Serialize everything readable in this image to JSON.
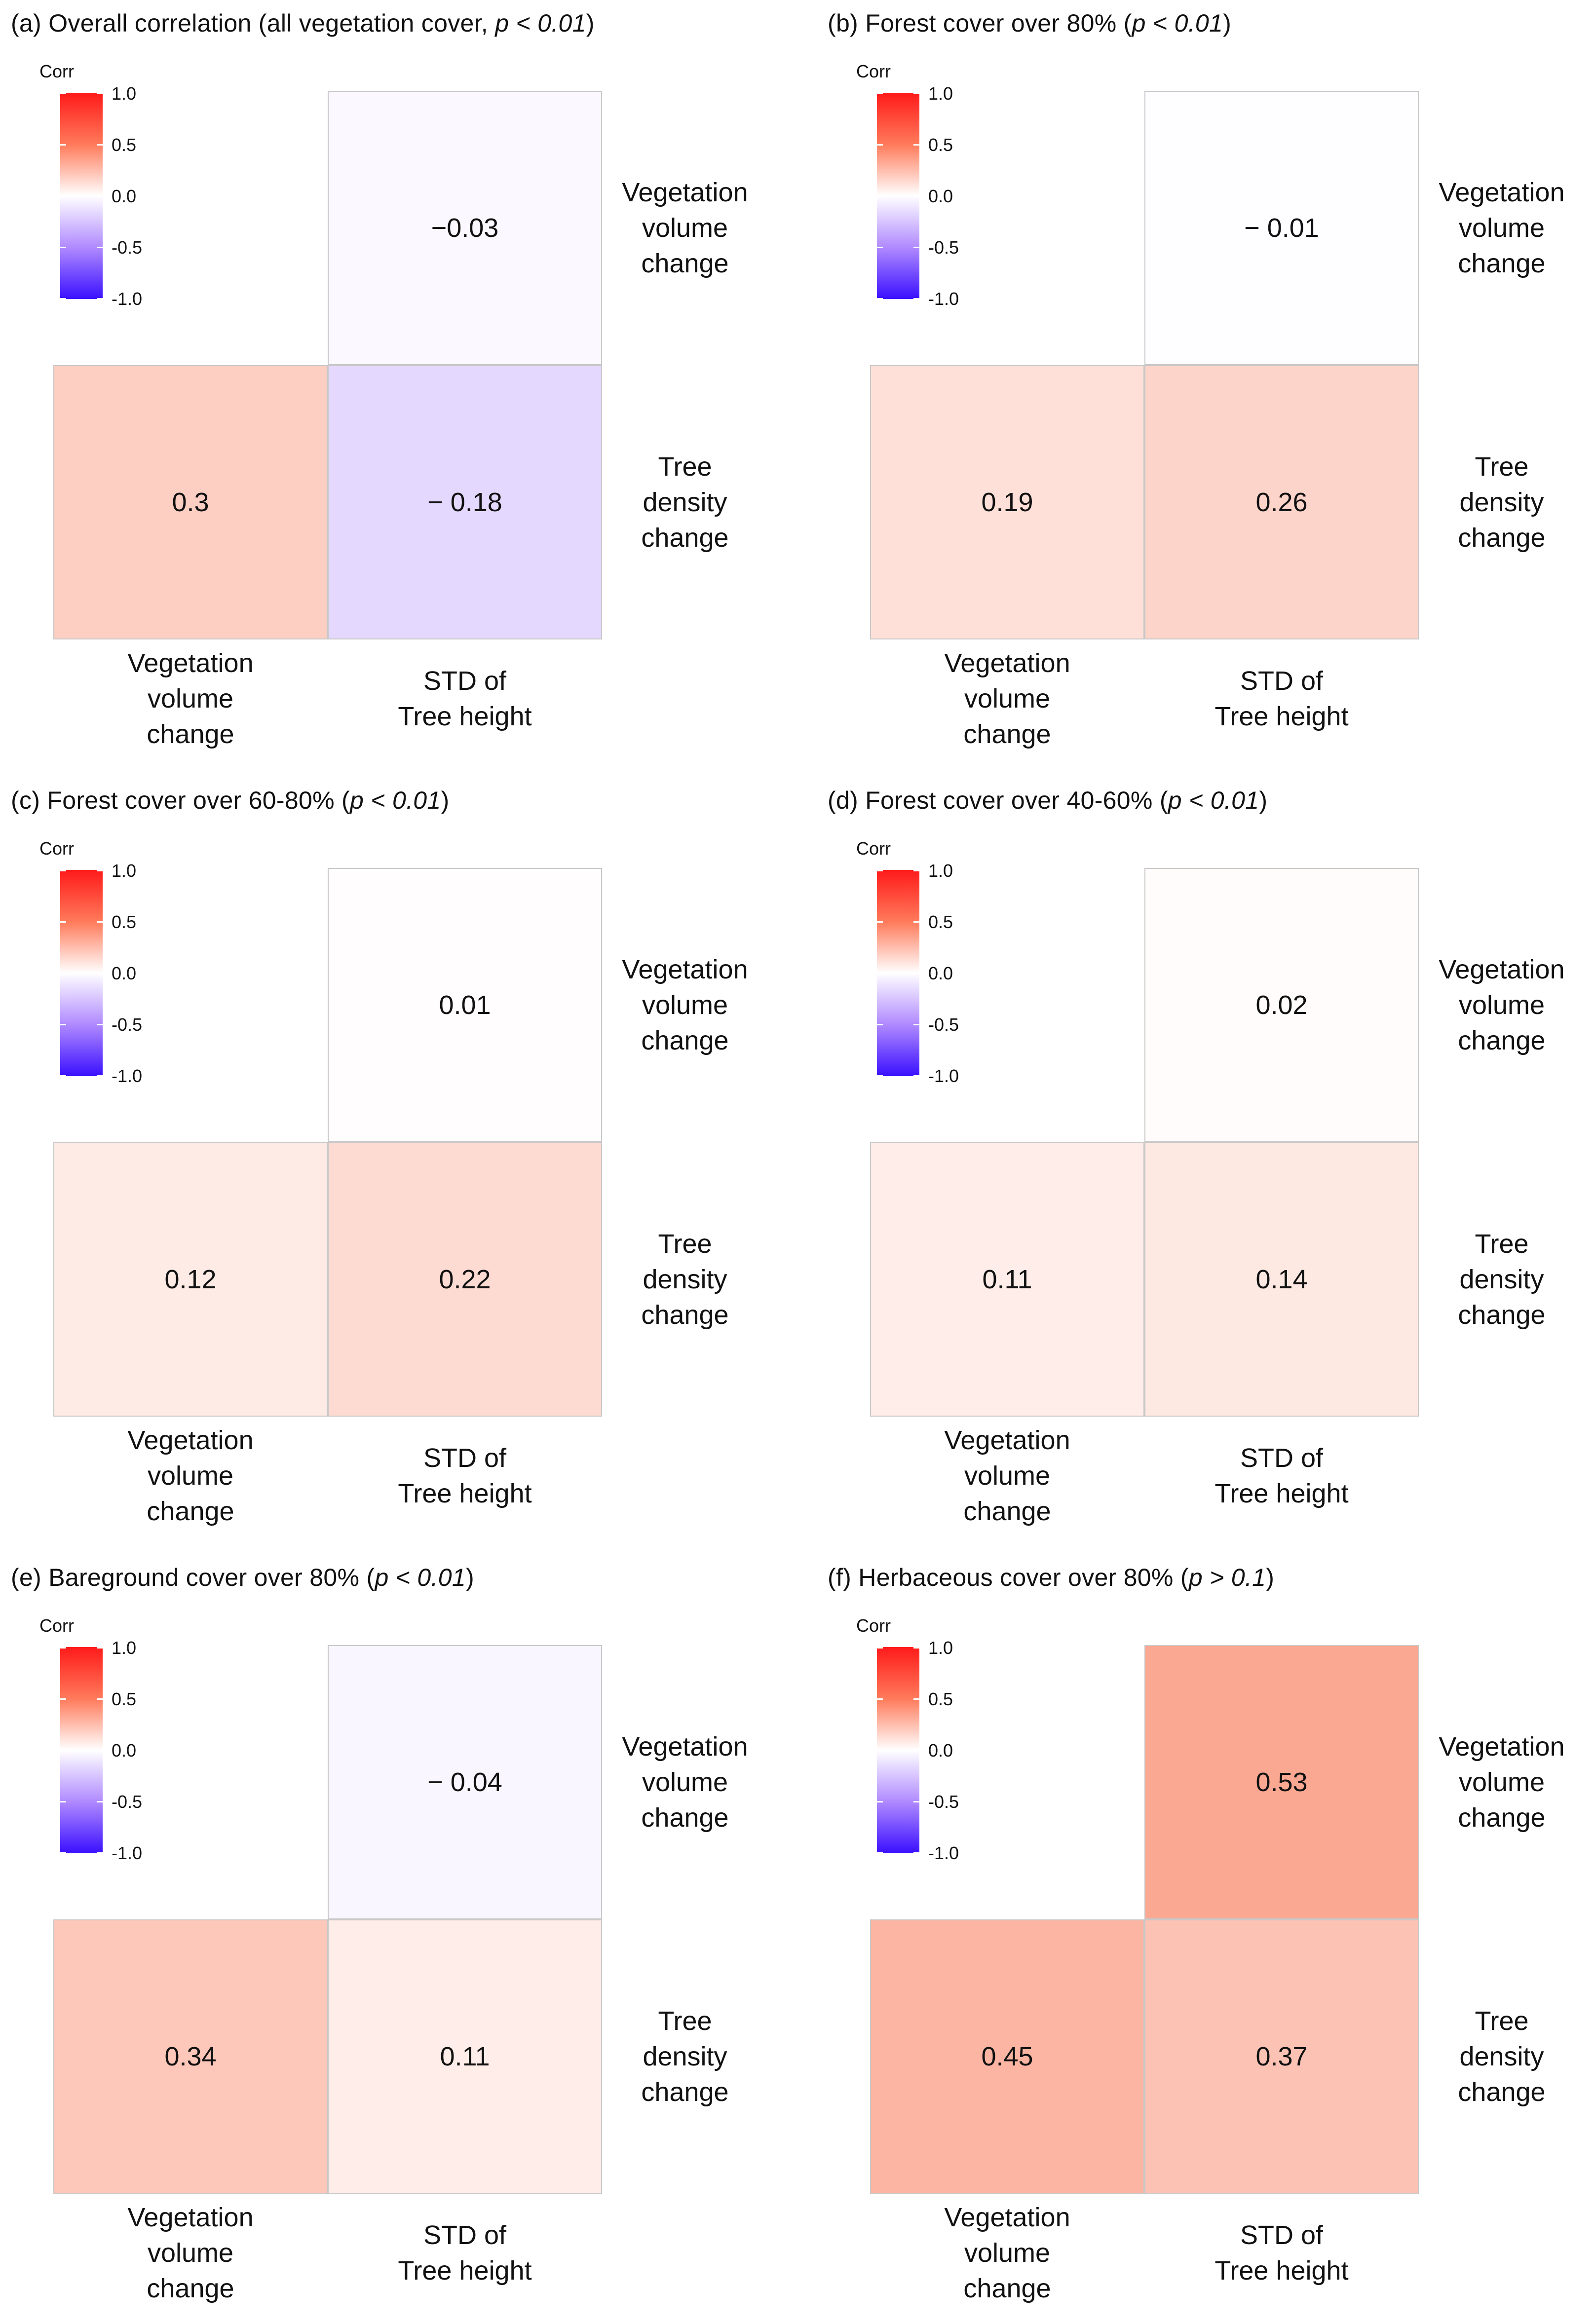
{
  "legend": {
    "title": "Corr",
    "ticks": [
      "1.0",
      "0.5",
      "0.0",
      "-0.5",
      "-1.0"
    ],
    "colors": {
      "high": "#ff1a1a",
      "mid": "#ffffff",
      "low": "#3a10ff"
    }
  },
  "chart_data": [
    {
      "type": "heatmap",
      "panel_label": "(a) Overall  correlation (all vegetation cover, ",
      "p_value": "p < 0.01",
      "title_suffix": ")",
      "row_labels": [
        [
          "Vegetation",
          "volume",
          "change"
        ],
        [
          "Tree",
          "density",
          "change"
        ]
      ],
      "col_labels": [
        [
          "Vegetation",
          "volume",
          "change"
        ],
        [
          "STD of",
          "Tree height"
        ]
      ],
      "cells": [
        {
          "row": 0,
          "col": 1,
          "value": -0.03,
          "label": "−0.03"
        },
        {
          "row": 1,
          "col": 0,
          "value": 0.3,
          "label": "0.3"
        },
        {
          "row": 1,
          "col": 1,
          "value": -0.18,
          "label": "− 0.18"
        }
      ]
    },
    {
      "type": "heatmap",
      "panel_label": "(b) Forest cover over 80% (",
      "p_value": "p < 0.01",
      "title_suffix": ")",
      "row_labels": [
        [
          "Vegetation",
          "volume",
          "change"
        ],
        [
          "Tree",
          "density",
          "change"
        ]
      ],
      "col_labels": [
        [
          "Vegetation",
          "volume",
          "change"
        ],
        [
          "STD of",
          "Tree height"
        ]
      ],
      "cells": [
        {
          "row": 0,
          "col": 1,
          "value": -0.01,
          "label": "− 0.01"
        },
        {
          "row": 1,
          "col": 0,
          "value": 0.19,
          "label": "0.19"
        },
        {
          "row": 1,
          "col": 1,
          "value": 0.26,
          "label": "0.26"
        }
      ]
    },
    {
      "type": "heatmap",
      "panel_label": "(c) Forest cover over 60-80% (",
      "p_value": "p < 0.01",
      "title_suffix": ")",
      "row_labels": [
        [
          "Vegetation",
          "volume",
          "change"
        ],
        [
          "Tree",
          "density",
          "change"
        ]
      ],
      "col_labels": [
        [
          "Vegetation",
          "volume",
          "change"
        ],
        [
          "STD of",
          "Tree height"
        ]
      ],
      "cells": [
        {
          "row": 0,
          "col": 1,
          "value": 0.01,
          "label": "0.01"
        },
        {
          "row": 1,
          "col": 0,
          "value": 0.12,
          "label": "0.12"
        },
        {
          "row": 1,
          "col": 1,
          "value": 0.22,
          "label": "0.22"
        }
      ]
    },
    {
      "type": "heatmap",
      "panel_label": "(d) Forest cover over 40-60% (",
      "p_value": "p < 0.01",
      "title_suffix": ")",
      "row_labels": [
        [
          "Vegetation",
          "volume",
          "change"
        ],
        [
          "Tree",
          "density",
          "change"
        ]
      ],
      "col_labels": [
        [
          "Vegetation",
          "volume",
          "change"
        ],
        [
          "STD of",
          "Tree height"
        ]
      ],
      "cells": [
        {
          "row": 0,
          "col": 1,
          "value": 0.02,
          "label": "0.02"
        },
        {
          "row": 1,
          "col": 0,
          "value": 0.11,
          "label": "0.11"
        },
        {
          "row": 1,
          "col": 1,
          "value": 0.14,
          "label": "0.14"
        }
      ]
    },
    {
      "type": "heatmap",
      "panel_label": "(e) Bareground cover over 80% (",
      "p_value": "p < 0.01",
      "title_suffix": ")",
      "row_labels": [
        [
          "Vegetation",
          "volume",
          "change"
        ],
        [
          "Tree",
          "density",
          "change"
        ]
      ],
      "col_labels": [
        [
          "Vegetation",
          "volume",
          "change"
        ],
        [
          "STD of",
          "Tree height"
        ]
      ],
      "cells": [
        {
          "row": 0,
          "col": 1,
          "value": -0.04,
          "label": "− 0.04"
        },
        {
          "row": 1,
          "col": 0,
          "value": 0.34,
          "label": "0.34"
        },
        {
          "row": 1,
          "col": 1,
          "value": 0.11,
          "label": "0.11"
        }
      ]
    },
    {
      "type": "heatmap",
      "panel_label": "(f) Herbaceous  cover over 80% (",
      "p_value": "p > 0.1",
      "title_suffix": ")",
      "row_labels": [
        [
          "Vegetation",
          "volume",
          "change"
        ],
        [
          "Tree",
          "density",
          "change"
        ]
      ],
      "col_labels": [
        [
          "Vegetation",
          "volume",
          "change"
        ],
        [
          "STD of",
          "Tree height"
        ]
      ],
      "cells": [
        {
          "row": 0,
          "col": 1,
          "value": 0.53,
          "label": "0.53"
        },
        {
          "row": 1,
          "col": 0,
          "value": 0.45,
          "label": "0.45"
        },
        {
          "row": 1,
          "col": 1,
          "value": 0.37,
          "label": "0.37"
        }
      ]
    }
  ]
}
